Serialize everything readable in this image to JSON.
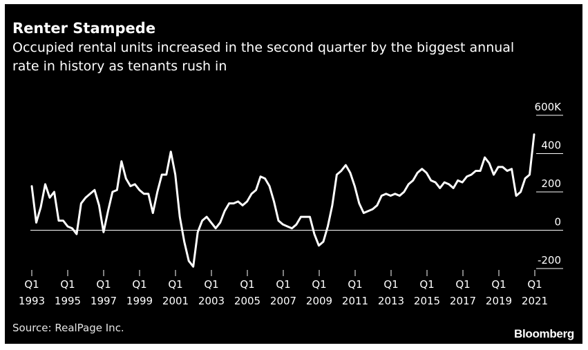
{
  "header": {
    "title": "Renter Stampede",
    "subtitle": "Occupied rental units increased in the second quarter by the biggest annual rate in history as tenants rush in"
  },
  "footer": {
    "source": "Source: RealPage Inc.",
    "brand": "Bloomberg"
  },
  "colors": {
    "background": "#000000",
    "line": "#ffffff",
    "text": "#ffffff"
  },
  "chart_data": {
    "type": "line",
    "title": "Renter Stampede",
    "subtitle": "Occupied rental units increased in the second quarter by the biggest annual rate in history as tenants rush in",
    "xlabel": "",
    "ylabel": "",
    "ylim": [
      -200,
      600
    ],
    "y_ticks": [
      -200,
      0,
      200,
      400,
      600
    ],
    "y_tick_labels": [
      "-200",
      "0",
      "200",
      "400",
      "600K"
    ],
    "y_axis_side": "right",
    "x_ticks": [
      {
        "year": 1993,
        "q": "Q1",
        "label": "1993"
      },
      {
        "year": 1995,
        "q": "Q1",
        "label": "1995"
      },
      {
        "year": 1997,
        "q": "Q1",
        "label": "1997"
      },
      {
        "year": 1999,
        "q": "Q1",
        "label": "1999"
      },
      {
        "year": 2001,
        "q": "Q1",
        "label": "2001"
      },
      {
        "year": 2003,
        "q": "Q1",
        "label": "2003"
      },
      {
        "year": 2005,
        "q": "Q1",
        "label": "2005"
      },
      {
        "year": 2007,
        "q": "Q1",
        "label": "2007"
      },
      {
        "year": 2009,
        "q": "Q1",
        "label": "2009"
      },
      {
        "year": 2011,
        "q": "Q1",
        "label": "2011"
      },
      {
        "year": 2013,
        "q": "Q1",
        "label": "2013"
      },
      {
        "year": 2015,
        "q": "Q1",
        "label": "2015"
      },
      {
        "year": 2017,
        "q": "Q1",
        "label": "2017"
      },
      {
        "year": 2019,
        "q": "Q1",
        "label": "2019"
      },
      {
        "year": 2021,
        "q": "Q1",
        "label": "2021"
      }
    ],
    "grid": false,
    "zero_line": true,
    "legend": "none",
    "series": [
      {
        "x_start": "1993 Q1",
        "frequency": "quarterly",
        "values": [
          230,
          40,
          120,
          240,
          170,
          200,
          50,
          50,
          20,
          10,
          -20,
          140,
          170,
          190,
          210,
          130,
          -10,
          100,
          200,
          210,
          360,
          270,
          230,
          240,
          210,
          190,
          190,
          90,
          200,
          290,
          290,
          410,
          290,
          70,
          -60,
          -160,
          -190,
          -10,
          50,
          70,
          40,
          10,
          40,
          100,
          140,
          140,
          150,
          130,
          150,
          190,
          210,
          280,
          270,
          230,
          150,
          50,
          30,
          20,
          10,
          30,
          70,
          70,
          70,
          -20,
          -80,
          -60,
          20,
          130,
          290,
          310,
          340,
          300,
          230,
          140,
          90,
          100,
          110,
          130,
          180,
          190,
          180,
          190,
          180,
          200,
          240,
          260,
          300,
          320,
          300,
          260,
          250,
          220,
          250,
          240,
          220,
          260,
          250,
          280,
          290,
          310,
          310,
          380,
          350,
          290,
          330,
          330,
          310,
          320,
          180,
          200,
          270,
          290,
          500
        ]
      }
    ]
  }
}
